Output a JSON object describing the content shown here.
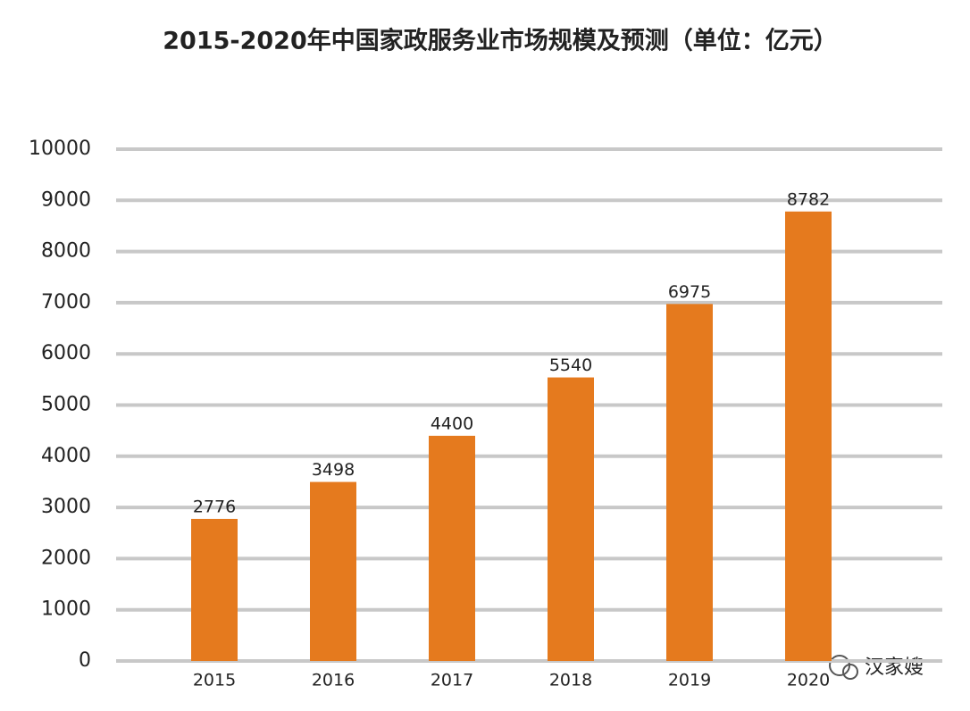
{
  "chart_data": {
    "type": "bar",
    "title": "2015-2020年中国家政服务业市场规模及预测（单位：亿元）",
    "categories": [
      "2015",
      "2016",
      "2017",
      "2018",
      "2019",
      "2020"
    ],
    "values": [
      2776,
      3498,
      4400,
      5540,
      6975,
      8782
    ],
    "color": "#e57a1e",
    "ylim": [
      0,
      10000
    ],
    "yticks": [
      0,
      1000,
      2000,
      3000,
      4000,
      5000,
      6000,
      7000,
      8000,
      9000,
      10000
    ],
    "grid": true,
    "watermark": "汉家嫂"
  }
}
